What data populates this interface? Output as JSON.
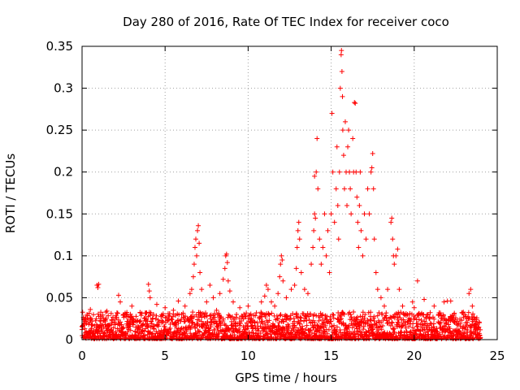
{
  "chart_data": {
    "type": "scatter",
    "title": "Day 280 of 2016, Rate Of TEC Index for receiver coco",
    "xlabel": "GPS time / hours",
    "ylabel": "ROTI / TECUs",
    "xlim": [
      0,
      25
    ],
    "ylim": [
      0,
      0.35
    ],
    "xticks": [
      0,
      5,
      10,
      15,
      20,
      25
    ],
    "xtick_labels": [
      "0",
      "5",
      "10",
      "15",
      "20",
      "25"
    ],
    "yticks": [
      0,
      0.05,
      0.1,
      0.15,
      0.2,
      0.25,
      0.3,
      0.35
    ],
    "ytick_labels": [
      "0",
      "0.05",
      "0.1",
      "0.15",
      "0.2",
      "0.25",
      "0.3",
      "0.35"
    ],
    "grid": true,
    "marker": "+",
    "color": "#ff0000",
    "series": [
      {
        "name": "ROTI",
        "points": [
          [
            0.0,
            0.012
          ],
          [
            0.1,
            0.025
          ],
          [
            0.2,
            0.008
          ],
          [
            0.3,
            0.03
          ],
          [
            0.4,
            0.018
          ],
          [
            0.5,
            0.036
          ],
          [
            0.6,
            0.022
          ],
          [
            0.7,
            0.01
          ],
          [
            0.9,
            0.065
          ],
          [
            0.95,
            0.062
          ],
          [
            1.0,
            0.066
          ],
          [
            1.1,
            0.028
          ],
          [
            1.3,
            0.015
          ],
          [
            1.5,
            0.034
          ],
          [
            1.8,
            0.02
          ],
          [
            2.0,
            0.025
          ],
          [
            2.2,
            0.053
          ],
          [
            2.3,
            0.045
          ],
          [
            2.5,
            0.03
          ],
          [
            2.8,
            0.018
          ],
          [
            3.0,
            0.04
          ],
          [
            3.2,
            0.022
          ],
          [
            3.5,
            0.032
          ],
          [
            3.8,
            0.026
          ],
          [
            4.0,
            0.066
          ],
          [
            4.05,
            0.058
          ],
          [
            4.1,
            0.05
          ],
          [
            4.3,
            0.03
          ],
          [
            4.5,
            0.042
          ],
          [
            4.8,
            0.02
          ],
          [
            5.0,
            0.038
          ],
          [
            5.2,
            0.028
          ],
          [
            5.5,
            0.035
          ],
          [
            5.8,
            0.046
          ],
          [
            6.0,
            0.03
          ],
          [
            6.2,
            0.04
          ],
          [
            6.5,
            0.055
          ],
          [
            6.6,
            0.06
          ],
          [
            6.7,
            0.075
          ],
          [
            6.75,
            0.09
          ],
          [
            6.8,
            0.11
          ],
          [
            6.85,
            0.12
          ],
          [
            6.9,
            0.1
          ],
          [
            6.95,
            0.13
          ],
          [
            7.0,
            0.136
          ],
          [
            7.05,
            0.115
          ],
          [
            7.1,
            0.08
          ],
          [
            7.2,
            0.06
          ],
          [
            7.5,
            0.045
          ],
          [
            7.7,
            0.065
          ],
          [
            7.9,
            0.05
          ],
          [
            8.1,
            0.035
          ],
          [
            8.3,
            0.055
          ],
          [
            8.5,
            0.072
          ],
          [
            8.6,
            0.085
          ],
          [
            8.65,
            0.1
          ],
          [
            8.7,
            0.102
          ],
          [
            8.75,
            0.092
          ],
          [
            8.8,
            0.07
          ],
          [
            8.9,
            0.058
          ],
          [
            9.1,
            0.045
          ],
          [
            9.3,
            0.03
          ],
          [
            9.5,
            0.038
          ],
          [
            9.8,
            0.028
          ],
          [
            10.0,
            0.04
          ],
          [
            10.2,
            0.025
          ],
          [
            10.5,
            0.032
          ],
          [
            10.8,
            0.045
          ],
          [
            11.0,
            0.052
          ],
          [
            11.1,
            0.065
          ],
          [
            11.2,
            0.06
          ],
          [
            11.4,
            0.045
          ],
          [
            11.6,
            0.04
          ],
          [
            11.8,
            0.055
          ],
          [
            11.9,
            0.075
          ],
          [
            11.95,
            0.09
          ],
          [
            12.0,
            0.1
          ],
          [
            12.05,
            0.095
          ],
          [
            12.1,
            0.07
          ],
          [
            12.3,
            0.05
          ],
          [
            12.6,
            0.06
          ],
          [
            12.8,
            0.065
          ],
          [
            12.9,
            0.085
          ],
          [
            12.95,
            0.11
          ],
          [
            13.0,
            0.13
          ],
          [
            13.05,
            0.14
          ],
          [
            13.1,
            0.12
          ],
          [
            13.2,
            0.08
          ],
          [
            13.4,
            0.06
          ],
          [
            13.6,
            0.055
          ],
          [
            13.8,
            0.09
          ],
          [
            13.9,
            0.11
          ],
          [
            13.95,
            0.13
          ],
          [
            14.0,
            0.15
          ],
          [
            14.05,
            0.145
          ],
          [
            14.0,
            0.195
          ],
          [
            14.1,
            0.2
          ],
          [
            14.15,
            0.24
          ],
          [
            14.2,
            0.18
          ],
          [
            14.3,
            0.12
          ],
          [
            14.4,
            0.09
          ],
          [
            14.5,
            0.11
          ],
          [
            14.6,
            0.15
          ],
          [
            14.7,
            0.1
          ],
          [
            14.8,
            0.13
          ],
          [
            14.9,
            0.08
          ],
          [
            15.0,
            0.15
          ],
          [
            15.05,
            0.27
          ],
          [
            15.1,
            0.2
          ],
          [
            15.2,
            0.14
          ],
          [
            15.3,
            0.18
          ],
          [
            15.35,
            0.23
          ],
          [
            15.4,
            0.16
          ],
          [
            15.45,
            0.12
          ],
          [
            15.5,
            0.2
          ],
          [
            15.55,
            0.3
          ],
          [
            15.6,
            0.34
          ],
          [
            15.62,
            0.345
          ],
          [
            15.65,
            0.32
          ],
          [
            15.68,
            0.29
          ],
          [
            15.7,
            0.25
          ],
          [
            15.75,
            0.22
          ],
          [
            15.8,
            0.18
          ],
          [
            15.85,
            0.26
          ],
          [
            15.9,
            0.2
          ],
          [
            15.95,
            0.16
          ],
          [
            16.0,
            0.23
          ],
          [
            16.05,
            0.25
          ],
          [
            16.1,
            0.2
          ],
          [
            16.15,
            0.18
          ],
          [
            16.2,
            0.15
          ],
          [
            16.3,
            0.24
          ],
          [
            16.35,
            0.2
          ],
          [
            16.4,
            0.283
          ],
          [
            16.45,
            0.282
          ],
          [
            16.5,
            0.2
          ],
          [
            16.55,
            0.17
          ],
          [
            16.6,
            0.14
          ],
          [
            16.65,
            0.11
          ],
          [
            16.7,
            0.16
          ],
          [
            16.75,
            0.2
          ],
          [
            16.8,
            0.13
          ],
          [
            16.9,
            0.1
          ],
          [
            17.0,
            0.15
          ],
          [
            17.1,
            0.12
          ],
          [
            17.2,
            0.18
          ],
          [
            17.3,
            0.15
          ],
          [
            17.4,
            0.2
          ],
          [
            17.45,
            0.205
          ],
          [
            17.5,
            0.222
          ],
          [
            17.55,
            0.18
          ],
          [
            17.6,
            0.12
          ],
          [
            17.7,
            0.08
          ],
          [
            17.8,
            0.06
          ],
          [
            18.0,
            0.05
          ],
          [
            18.2,
            0.04
          ],
          [
            18.4,
            0.06
          ],
          [
            18.6,
            0.14
          ],
          [
            18.65,
            0.145
          ],
          [
            18.7,
            0.12
          ],
          [
            18.75,
            0.1
          ],
          [
            18.8,
            0.09
          ],
          [
            18.9,
            0.1
          ],
          [
            19.0,
            0.108
          ],
          [
            19.1,
            0.06
          ],
          [
            19.3,
            0.04
          ],
          [
            19.6,
            0.03
          ],
          [
            19.9,
            0.045
          ],
          [
            20.0,
            0.038
          ],
          [
            20.2,
            0.07
          ],
          [
            20.4,
            0.03
          ],
          [
            20.6,
            0.048
          ],
          [
            20.9,
            0.025
          ],
          [
            21.2,
            0.04
          ],
          [
            21.5,
            0.032
          ],
          [
            21.8,
            0.045
          ],
          [
            22.0,
            0.046
          ],
          [
            22.2,
            0.046
          ],
          [
            22.4,
            0.03
          ],
          [
            22.6,
            0.022
          ],
          [
            22.9,
            0.015
          ],
          [
            23.1,
            0.02
          ],
          [
            23.3,
            0.055
          ],
          [
            23.4,
            0.06
          ],
          [
            23.5,
            0.04
          ],
          [
            23.6,
            0.025
          ],
          [
            23.7,
            0.012
          ],
          [
            23.8,
            0.008
          ]
        ]
      }
    ]
  }
}
